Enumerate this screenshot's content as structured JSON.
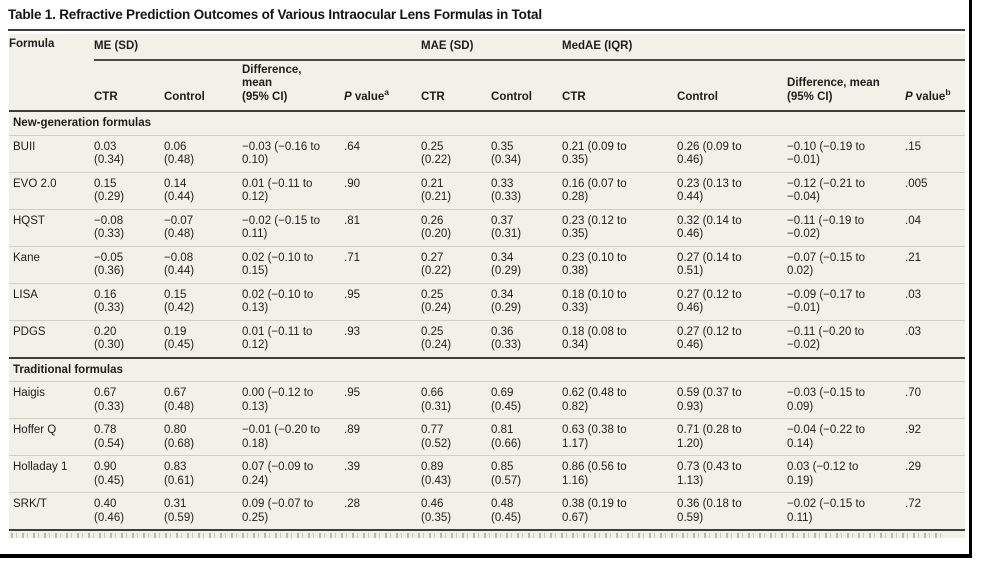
{
  "title": "Table 1. Refractive Prediction Outcomes of Various Intraocular Lens Formulas in Total",
  "colors": {
    "table_background": "#f2f1e8",
    "rule_dark": "#3e3d39",
    "hairline": "#d2d0c2",
    "text": "#1e1d1a"
  },
  "header": {
    "formula": "Formula",
    "me": {
      "group": "ME (SD)",
      "ctr": "CTR",
      "control": "Control",
      "diff": "Difference,\nmean\n(95% CI)",
      "p_em": "P",
      "p_rest": " value",
      "p_sup": "a"
    },
    "mae": {
      "group": "MAE (SD)",
      "ctr": "CTR",
      "control": "Control"
    },
    "medae": {
      "group": "MedAE (IQR)",
      "ctr": "CTR",
      "control": "Control",
      "diff": "Difference, mean\n(95% CI)",
      "p_em": "P",
      "p_rest": " value",
      "p_sup": "b"
    }
  },
  "table": {
    "sections": [
      {
        "label": "New-generation formulas",
        "rows": [
          {
            "formula": "BUII",
            "cells": [
              "0.03\n(0.34)",
              "0.06\n(0.48)",
              "−0.03 (−0.16 to\n0.10)",
              ".64",
              "0.25\n(0.22)",
              "0.35\n(0.34)",
              "0.21 (0.09 to\n0.35)",
              "0.26 (0.09 to\n0.46)",
              "−0.10 (−0.19 to\n−0.01)",
              ".15"
            ]
          },
          {
            "formula": "EVO 2.0",
            "cells": [
              "0.15\n(0.29)",
              "0.14\n(0.44)",
              "0.01 (−0.11 to\n0.12)",
              ".90",
              "0.21\n(0.21)",
              "0.33\n(0.33)",
              "0.16 (0.07 to\n0.28)",
              "0.23 (0.13 to\n0.44)",
              "−0.12 (−0.21 to\n−0.04)",
              ".005"
            ]
          },
          {
            "formula": "HQST",
            "cells": [
              "−0.08\n(0.33)",
              "−0.07\n(0.48)",
              "−0.02 (−0.15 to\n0.11)",
              ".81",
              "0.26\n(0.20)",
              "0.37\n(0.31)",
              "0.23 (0.12 to\n0.35)",
              "0.32 (0.14 to\n0.46)",
              "−0.11 (−0.19 to\n−0.02)",
              ".04"
            ]
          },
          {
            "formula": "Kane",
            "cells": [
              "−0.05\n(0.36)",
              "−0.08\n(0.44)",
              "0.02 (−0.10 to\n0.15)",
              ".71",
              "0.27\n(0.22)",
              "0.34\n(0.29)",
              "0.23 (0.10 to\n0.38)",
              "0.27 (0.14 to\n0.51)",
              "−0.07 (−0.15 to\n0.02)",
              ".21"
            ]
          },
          {
            "formula": "LISA",
            "cells": [
              "0.16\n(0.33)",
              "0.15\n(0.42)",
              "0.02 (−0.10 to\n0.13)",
              ".95",
              "0.25\n(0.24)",
              "0.34\n(0.29)",
              "0.18 (0.10 to\n0.33)",
              "0.27 (0.12 to\n0.46)",
              "−0.09 (−0.17 to\n−0.01)",
              ".03"
            ]
          },
          {
            "formula": "PDGS",
            "cells": [
              "0.20\n(0.30)",
              "0.19\n(0.45)",
              "0.01 (−0.11 to\n0.12)",
              ".93",
              "0.25\n(0.24)",
              "0.36\n(0.33)",
              "0.18 (0.08 to\n0.34)",
              "0.27 (0.12 to\n0.46)",
              "−0.11 (−0.20 to\n−0.02)",
              ".03"
            ]
          }
        ]
      },
      {
        "label": "Traditional formulas",
        "rows": [
          {
            "formula": "Haigis",
            "cells": [
              "0.67\n(0.33)",
              "0.67\n(0.48)",
              "0.00 (−0.12 to\n0.13)",
              ".95",
              "0.66\n(0.31)",
              "0.69\n(0.45)",
              "0.62 (0.48 to\n0.82)",
              "0.59 (0.37 to\n0.93)",
              "−0.03 (−0.15 to\n0.09)",
              ".70"
            ]
          },
          {
            "formula": "Hoffer Q",
            "cells": [
              "0.78\n(0.54)",
              "0.80\n(0.68)",
              "−0.01 (−0.20 to\n0.18)",
              ".89",
              "0.77\n(0.52)",
              "0.81\n(0.66)",
              "0.63 (0.38 to\n1.17)",
              "0.71 (0.28 to\n1.20)",
              "−0.04 (−0.22 to\n0.14)",
              ".92"
            ]
          },
          {
            "formula": "Holladay 1",
            "cells": [
              "0.90\n(0.45)",
              "0.83\n(0.61)",
              "0.07 (−0.09 to\n0.24)",
              ".39",
              "0.89\n(0.43)",
              "0.85\n(0.57)",
              "0.86 (0.56 to\n1.16)",
              "0.73 (0.43 to\n1.13)",
              "0.03 (−0.12 to\n0.19)",
              ".29"
            ]
          },
          {
            "formula": "SRK/T",
            "cells": [
              "0.40\n(0.46)",
              "0.31\n(0.59)",
              "0.09 (−0.07 to\n0.25)",
              ".28",
              "0.46\n(0.35)",
              "0.48\n(0.45)",
              "0.38 (0.19 to\n0.67)",
              "0.36 (0.18 to\n0.59)",
              "−0.02 (−0.15 to\n0.11)",
              ".72"
            ]
          }
        ]
      }
    ]
  }
}
